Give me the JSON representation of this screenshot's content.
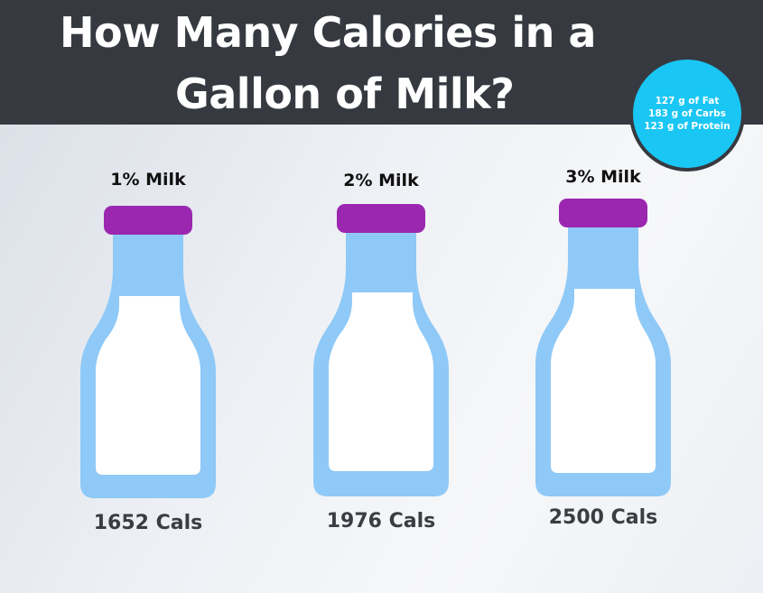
{
  "header": {
    "title_line_1": "How Many Calories in a",
    "title_line_2": "Gallon of Milk?"
  },
  "nutrition": {
    "fat": "127 g of Fat",
    "carbs": "183 g of Carbs",
    "protein": "123 g of Protein"
  },
  "bottles": [
    {
      "label": "1% Milk",
      "calories": "1652 Cals"
    },
    {
      "label": "2% Milk",
      "calories": "1976 Cals"
    },
    {
      "label": "3% Milk",
      "calories": "2500 Cals"
    }
  ],
  "colors": {
    "header_bg": "#363a40",
    "badge_bg": "#1ac6f3",
    "bottle_body": "#8fc9f7",
    "bottle_cap": "#9b27b0",
    "milk": "#ffffff"
  }
}
